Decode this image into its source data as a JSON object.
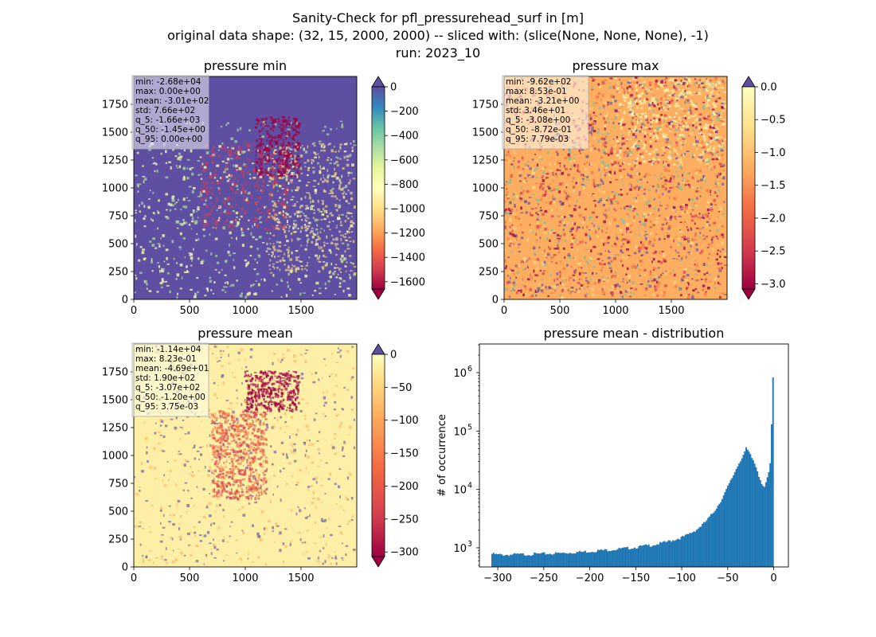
{
  "figure": {
    "suptitle": [
      "Sanity-Check for pfl_pressurehead_surf in [m]",
      "original data shape: (32, 15, 2000, 2000) -- sliced with: (slice(None, None, None), -1)",
      "run: 2023_10"
    ]
  },
  "chart_data": [
    {
      "type": "heatmap",
      "title": "pressure min",
      "xticks": [
        "0",
        "500",
        "1000",
        "1500"
      ],
      "yticks": [
        "0",
        "250",
        "500",
        "750",
        "1000",
        "1250",
        "1500",
        "1750"
      ],
      "xlim": [
        0,
        2000
      ],
      "ylim": [
        0,
        2000
      ],
      "colormap": "Spectral",
      "colorbar": {
        "ticks": [
          "0",
          "−200",
          "−400",
          "−600",
          "−800",
          "−1000",
          "−1200",
          "−1400",
          "−1600"
        ],
        "tick_values": [
          0,
          -200,
          -400,
          -600,
          -800,
          -1000,
          -1200,
          -1400,
          -1600
        ],
        "range": [
          -1660,
          0
        ],
        "extend": "both"
      },
      "stats": [
        "min: -2.68e+04",
        "max: 0.00e+00",
        "mean: -3.01e+02",
        "std: 7.66e+02",
        "q_5: -1.66e+03",
        "q_50: -1.45e+00",
        "q_95: 0.00e+00"
      ]
    },
    {
      "type": "heatmap",
      "title": "pressure max",
      "xticks": [
        "0",
        "500",
        "1000",
        "1500"
      ],
      "yticks": [
        "0",
        "250",
        "500",
        "750",
        "1000",
        "1250",
        "1500",
        "1750"
      ],
      "xlim": [
        0,
        2000
      ],
      "ylim": [
        0,
        2000
      ],
      "colormap": "Spectral",
      "colorbar": {
        "ticks": [
          "0.0",
          "−0.5",
          "−1.0",
          "−1.5",
          "−2.0",
          "−2.5",
          "−3.0"
        ],
        "tick_values": [
          0,
          -0.5,
          -1.0,
          -1.5,
          -2.0,
          -2.5,
          -3.0
        ],
        "range": [
          -3.08,
          0.0
        ],
        "extend": "both"
      },
      "stats": [
        "min: -9.62e+02",
        "max: 8.53e-01",
        "mean: -3.21e+00",
        "std: 3.46e+01",
        "q_5: -3.08e+00",
        "q_50: -8.72e-01",
        "q_95: 7.79e-03"
      ]
    },
    {
      "type": "heatmap",
      "title": "pressure mean",
      "xticks": [
        "0",
        "500",
        "1000",
        "1500"
      ],
      "yticks": [
        "0",
        "250",
        "500",
        "750",
        "1000",
        "1250",
        "1500",
        "1750"
      ],
      "xlim": [
        0,
        2000
      ],
      "ylim": [
        0,
        2000
      ],
      "colormap": "Spectral",
      "colorbar": {
        "ticks": [
          "0",
          "−50",
          "−100",
          "−150",
          "−200",
          "−250",
          "−300"
        ],
        "tick_values": [
          0,
          -50,
          -100,
          -150,
          -200,
          -250,
          -300
        ],
        "range": [
          -307,
          0
        ],
        "extend": "both"
      },
      "stats": [
        "min: -1.14e+04",
        "max: 8.23e-01",
        "mean: -4.69e+01",
        "std: 1.90e+02",
        "q_5: -3.07e+02",
        "q_50: -1.20e+00",
        "q_95: 3.75e-03"
      ]
    },
    {
      "type": "bar",
      "title": "pressure mean - distribution",
      "ylabel": "# of occurrence",
      "xlabel": "",
      "yscale": "log",
      "xlim": [
        -320,
        16
      ],
      "ylim": [
        470,
        3100000
      ],
      "xticks": [
        "−300",
        "−250",
        "−200",
        "−150",
        "−100",
        "−50",
        "0"
      ],
      "xtick_values": [
        -300,
        -250,
        -200,
        -150,
        -100,
        -50,
        0
      ],
      "yticks": [
        "10",
        "10",
        "10",
        "10"
      ],
      "ytick_exponents": [
        "3",
        "4",
        "5",
        "6"
      ],
      "ytick_values": [
        1000,
        10000,
        100000,
        1000000
      ],
      "bar_color": "#1f77b4",
      "bin_range": [
        -307,
        0
      ],
      "bins": 200,
      "profile_x": [
        -307,
        -300,
        -290,
        -280,
        -270,
        -260,
        -250,
        -240,
        -230,
        -220,
        -210,
        -200,
        -190,
        -180,
        -170,
        -160,
        -150,
        -140,
        -130,
        -120,
        -110,
        -100,
        -95,
        -90,
        -85,
        -80,
        -75,
        -70,
        -65,
        -60,
        -55,
        -50,
        -45,
        -40,
        -36,
        -32,
        -30,
        -28,
        -26,
        -24,
        -22,
        -20,
        -18,
        -16,
        -14,
        -12,
        -10,
        -8,
        -6,
        -4,
        -3,
        -2,
        -1,
        0
      ],
      "profile_y": [
        790,
        760,
        760,
        770,
        770,
        780,
        790,
        800,
        810,
        830,
        850,
        870,
        900,
        920,
        950,
        980,
        1020,
        1080,
        1130,
        1220,
        1350,
        1500,
        1620,
        1800,
        2000,
        2300,
        2700,
        3300,
        4200,
        5500,
        7500,
        11000,
        16000,
        24000,
        32000,
        42000,
        50000,
        46000,
        40000,
        35000,
        31000,
        26000,
        22000,
        17000,
        14000,
        12000,
        11000,
        13000,
        18000,
        23000,
        60000,
        180000,
        600000,
        2100000
      ]
    }
  ]
}
